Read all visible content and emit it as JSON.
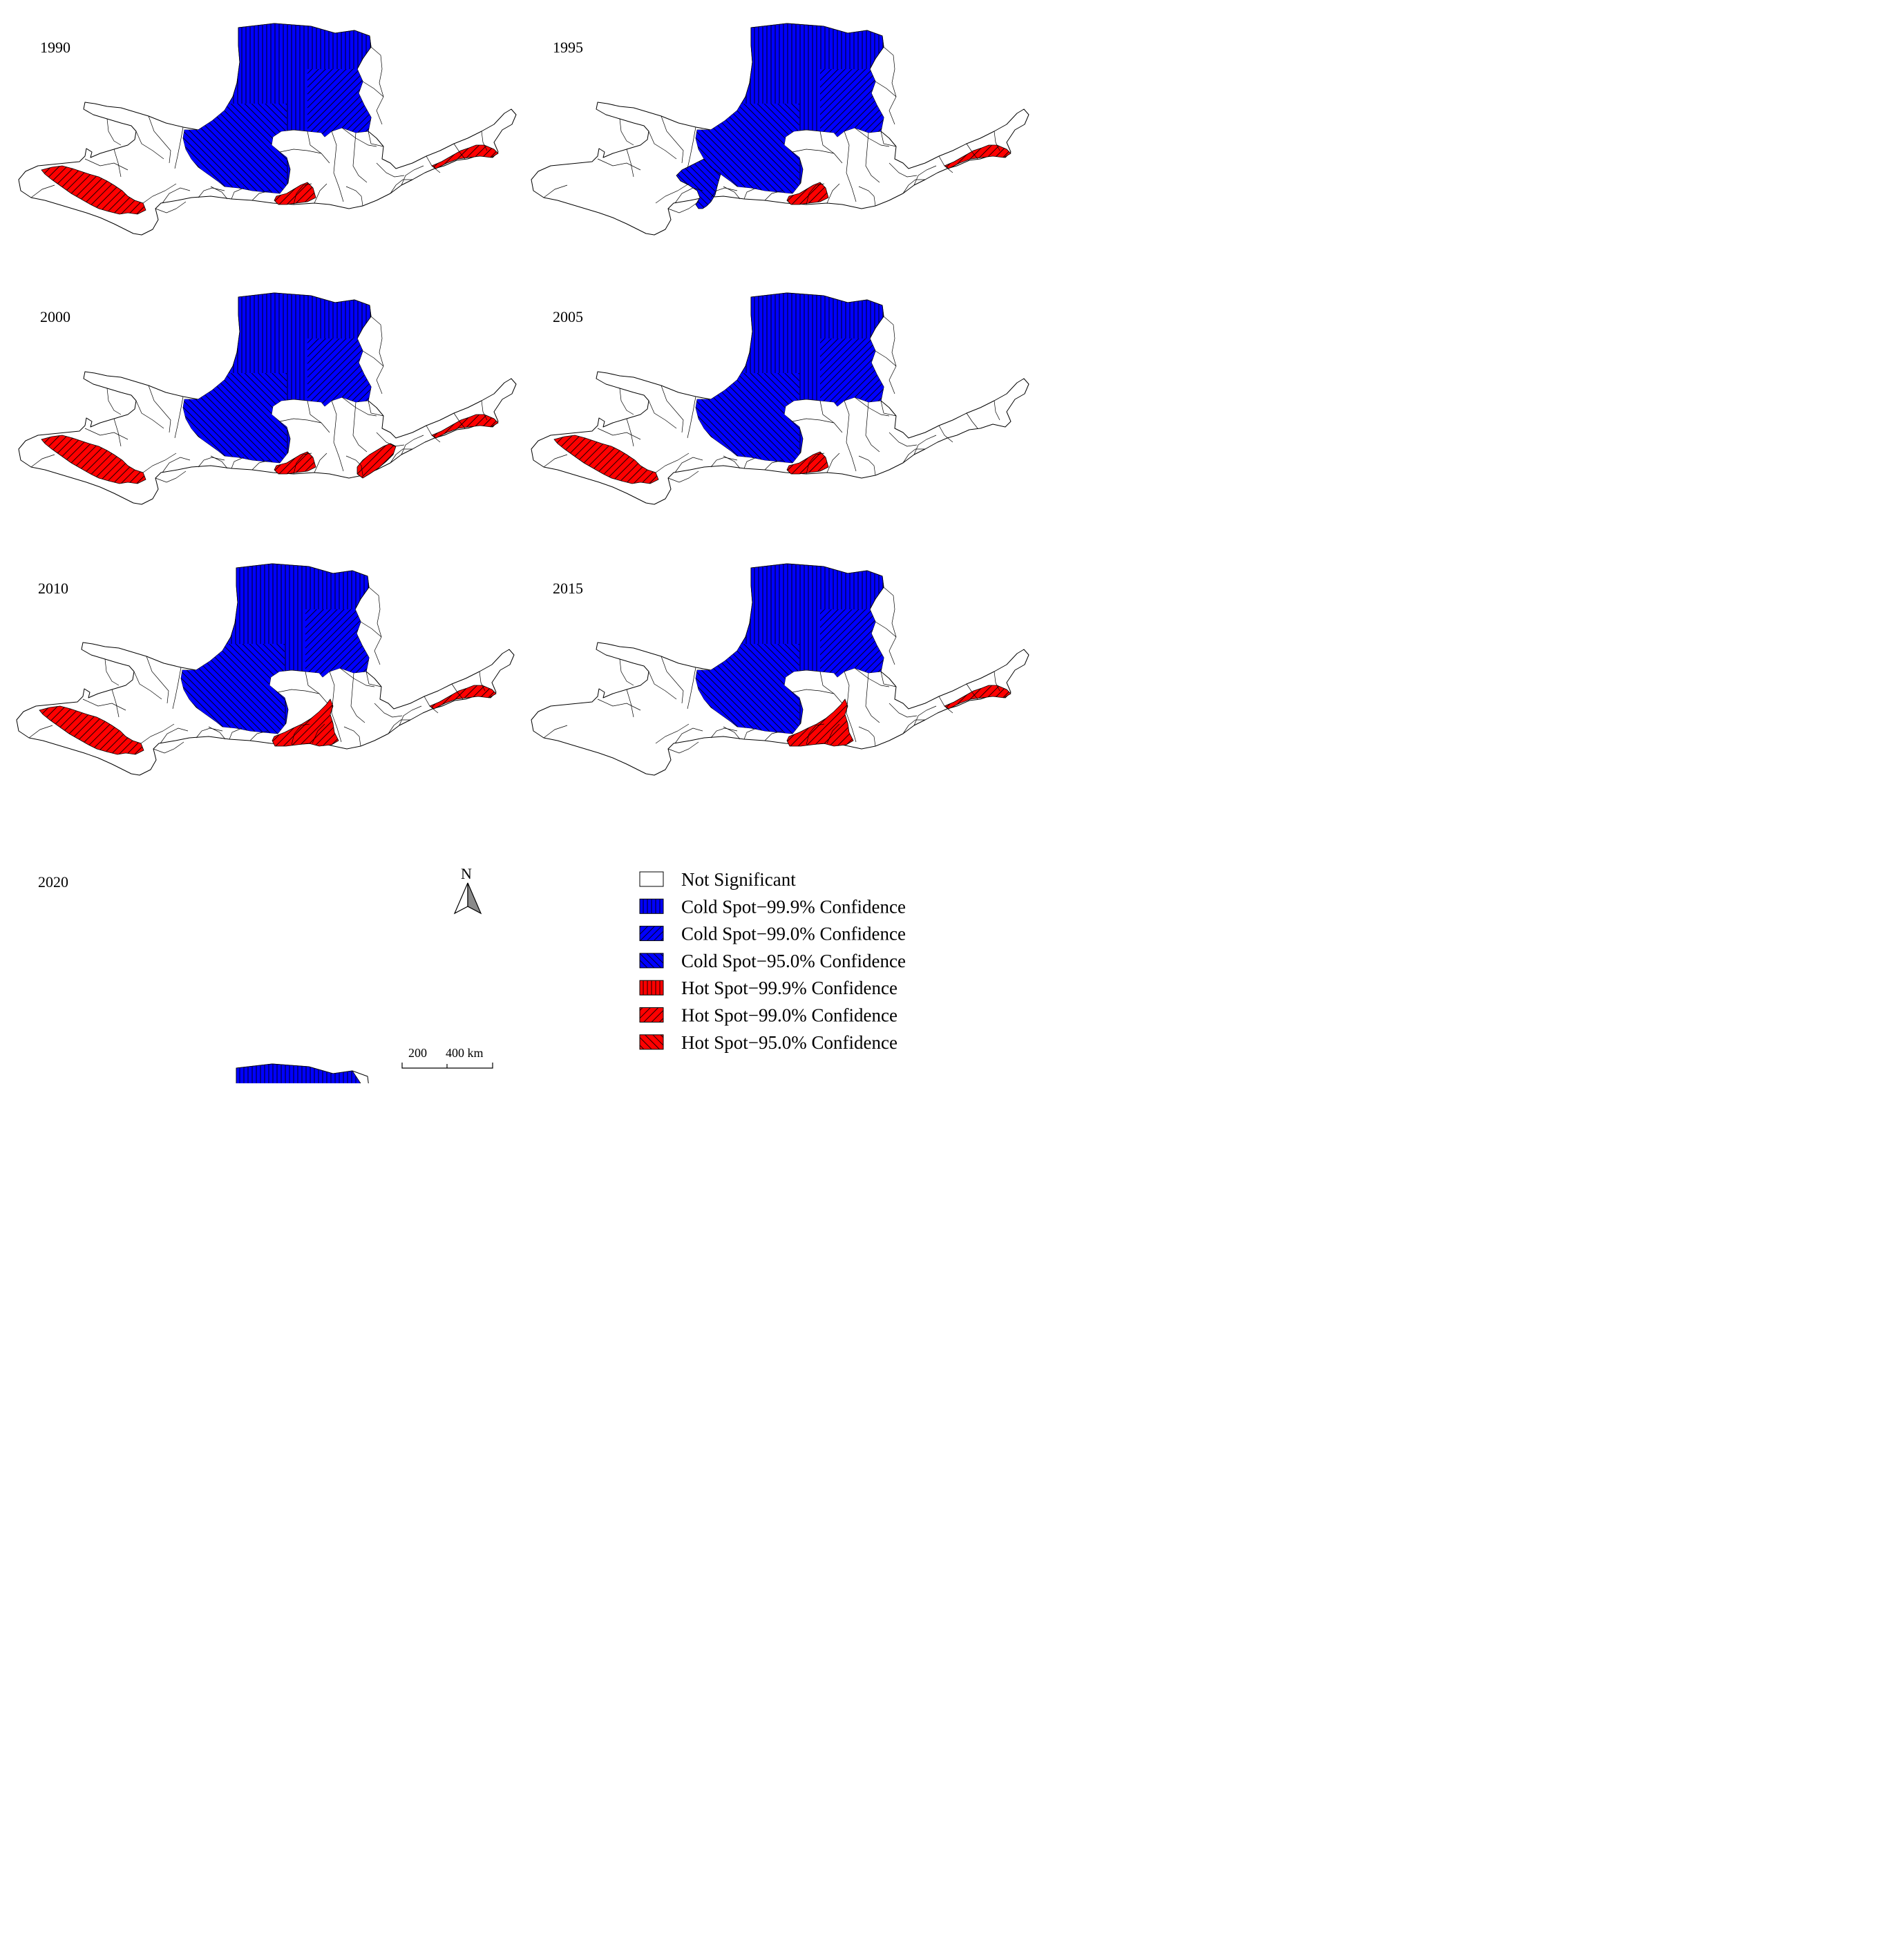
{
  "panels": [
    {
      "year": "1990",
      "cold": {
        "main": true,
        "west_arm": false
      },
      "hot": {
        "west": true,
        "center": true,
        "center_large": false,
        "mid_east": false,
        "east": true
      }
    },
    {
      "year": "1995",
      "cold": {
        "main": true,
        "west_arm": true
      },
      "hot": {
        "west": false,
        "center": true,
        "center_large": false,
        "mid_east": false,
        "east": true
      }
    },
    {
      "year": "2000",
      "cold": {
        "main": true,
        "west_arm": false
      },
      "hot": {
        "west": true,
        "center": true,
        "center_large": false,
        "mid_east": true,
        "east": true
      }
    },
    {
      "year": "2005",
      "cold": {
        "main": true,
        "west_arm": false
      },
      "hot": {
        "west": true,
        "center": true,
        "center_large": false,
        "mid_east": false,
        "east": false
      }
    },
    {
      "year": "2010",
      "cold": {
        "main": true,
        "west_arm": false
      },
      "hot": {
        "west": true,
        "center": false,
        "center_large": true,
        "mid_east": false,
        "east": true
      }
    },
    {
      "year": "2015",
      "cold": {
        "main": true,
        "west_arm": false
      },
      "hot": {
        "west": false,
        "center": false,
        "center_large": true,
        "mid_east": false,
        "east": true
      }
    },
    {
      "year": "2020",
      "cold": {
        "main": true,
        "west_arm": false
      },
      "hot": {
        "west": false,
        "center": false,
        "center_large": true,
        "mid_east": false,
        "east": false
      }
    }
  ],
  "north_arrow": {
    "label": "N",
    "icon": "north-arrow-icon"
  },
  "scale_bar": {
    "label_1": "200",
    "label_2": "400 km"
  },
  "legend": [
    {
      "label": "Not Significant",
      "fill": "#ffffff",
      "pattern": "none"
    },
    {
      "label": "Cold Spot−99.9% Confidence",
      "fill": "#0000ff",
      "pattern": "vertical"
    },
    {
      "label": "Cold Spot−99.0% Confidence",
      "fill": "#0000ff",
      "pattern": "diagonal-up"
    },
    {
      "label": "Cold Spot−95.0% Confidence",
      "fill": "#0000ff",
      "pattern": "diagonal-down"
    },
    {
      "label": "Hot  Spot−99.9% Confidence",
      "fill": "#ff0000",
      "pattern": "vertical"
    },
    {
      "label": "Hot  Spot−99.0% Confidence",
      "fill": "#ff0000",
      "pattern": "diagonal-up"
    },
    {
      "label": "Hot  Spot−95.0% Confidence",
      "fill": "#ff0000",
      "pattern": "diagonal-down"
    }
  ],
  "colors": {
    "cold": "#0000ff",
    "hot": "#ff0000",
    "not_significant": "#ffffff",
    "outline": "#000000"
  }
}
